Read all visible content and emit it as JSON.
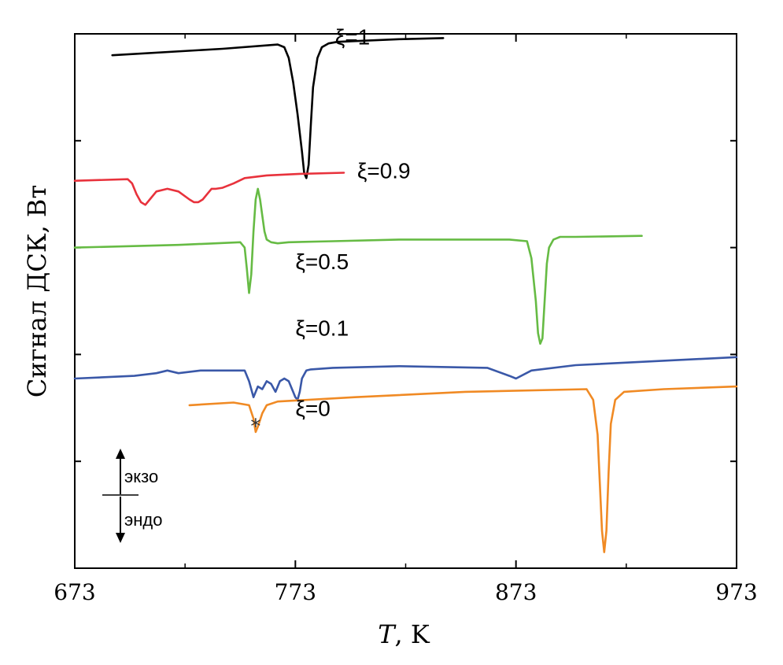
{
  "chart_data": {
    "type": "line",
    "title": "",
    "xlabel_italic": "T",
    "xlabel_rest": ", K",
    "ylabel": "Сигнал ДСК, Вт",
    "xlim": [
      673,
      973
    ],
    "ylim": [
      0,
      10
    ],
    "x_ticks": [
      673,
      773,
      873,
      973
    ],
    "x_minor_ticks": [
      723,
      823,
      923
    ],
    "y_ticks": [
      2,
      4,
      6,
      8
    ],
    "legend": {
      "up_label": "экзо",
      "down_label": "эндо"
    },
    "annotation": {
      "text": "*",
      "x": 755,
      "y": 2.7
    },
    "series": [
      {
        "name": "ξ=1",
        "color": "#000000",
        "label_pos": [
          791,
          9.8
        ],
        "x": [
          690,
          740,
          765,
          768,
          770,
          772,
          774,
          776,
          777,
          778,
          779,
          780,
          781,
          783,
          785,
          788,
          792,
          820,
          840
        ],
        "y": [
          9.6,
          9.72,
          9.8,
          9.75,
          9.55,
          9.1,
          8.5,
          7.8,
          7.4,
          7.3,
          7.55,
          8.3,
          9.0,
          9.55,
          9.75,
          9.82,
          9.85,
          9.9,
          9.92
        ]
      },
      {
        "name": "ξ=0.9",
        "color": "#e8323c",
        "label_pos": [
          801,
          7.3
        ],
        "x": [
          673,
          697,
          699,
          701,
          703,
          705,
          707,
          710,
          715,
          720,
          725,
          727,
          729,
          731,
          733,
          735,
          737,
          740,
          745,
          750,
          760,
          775,
          795
        ],
        "y": [
          7.25,
          7.28,
          7.2,
          7.0,
          6.85,
          6.8,
          6.9,
          7.05,
          7.1,
          7.05,
          6.9,
          6.85,
          6.85,
          6.9,
          7.0,
          7.1,
          7.1,
          7.12,
          7.2,
          7.3,
          7.35,
          7.38,
          7.4
        ]
      },
      {
        "name": "ξ=0.5",
        "color": "#66bb44",
        "label_pos": [
          773,
          5.6
        ],
        "x": [
          673,
          720,
          748,
          750,
          751,
          752,
          753,
          754,
          755,
          756,
          757,
          758,
          759,
          760,
          762,
          765,
          770,
          790,
          820,
          870,
          878,
          880,
          882,
          883,
          884,
          885,
          886,
          887,
          888,
          890,
          893,
          900,
          930
        ],
        "y": [
          6.0,
          6.05,
          6.1,
          6.0,
          5.6,
          5.15,
          5.5,
          6.3,
          6.9,
          7.1,
          6.9,
          6.6,
          6.3,
          6.15,
          6.1,
          6.08,
          6.1,
          6.12,
          6.15,
          6.15,
          6.12,
          5.8,
          5.0,
          4.4,
          4.2,
          4.3,
          5.0,
          5.7,
          6.0,
          6.15,
          6.2,
          6.2,
          6.22
        ]
      },
      {
        "name": "ξ=0.1",
        "color": "#3a58a8",
        "label_pos": [
          773,
          4.35
        ],
        "x": [
          673,
          700,
          710,
          715,
          720,
          730,
          740,
          750,
          752,
          754,
          756,
          758,
          760,
          762,
          764,
          766,
          768,
          770,
          772,
          773,
          774,
          775,
          776,
          778,
          780,
          790,
          820,
          860,
          870,
          873,
          880,
          900,
          973
        ],
        "y": [
          3.55,
          3.6,
          3.65,
          3.7,
          3.65,
          3.7,
          3.7,
          3.7,
          3.5,
          3.2,
          3.4,
          3.35,
          3.5,
          3.45,
          3.3,
          3.5,
          3.55,
          3.5,
          3.3,
          3.2,
          3.15,
          3.3,
          3.55,
          3.7,
          3.72,
          3.75,
          3.78,
          3.75,
          3.6,
          3.55,
          3.7,
          3.8,
          3.95
        ]
      },
      {
        "name": "ξ=0",
        "color": "#f08a24",
        "label_pos": [
          773,
          2.85
        ],
        "x": [
          725,
          745,
          752,
          754,
          755,
          756,
          758,
          760,
          765,
          800,
          850,
          905,
          908,
          910,
          911,
          912,
          913,
          914,
          915,
          916,
          918,
          922,
          940,
          973
        ],
        "y": [
          3.05,
          3.1,
          3.05,
          2.8,
          2.55,
          2.65,
          2.9,
          3.05,
          3.12,
          3.2,
          3.3,
          3.35,
          3.15,
          2.5,
          1.6,
          0.7,
          0.3,
          0.7,
          1.8,
          2.7,
          3.15,
          3.3,
          3.35,
          3.4
        ]
      }
    ]
  }
}
